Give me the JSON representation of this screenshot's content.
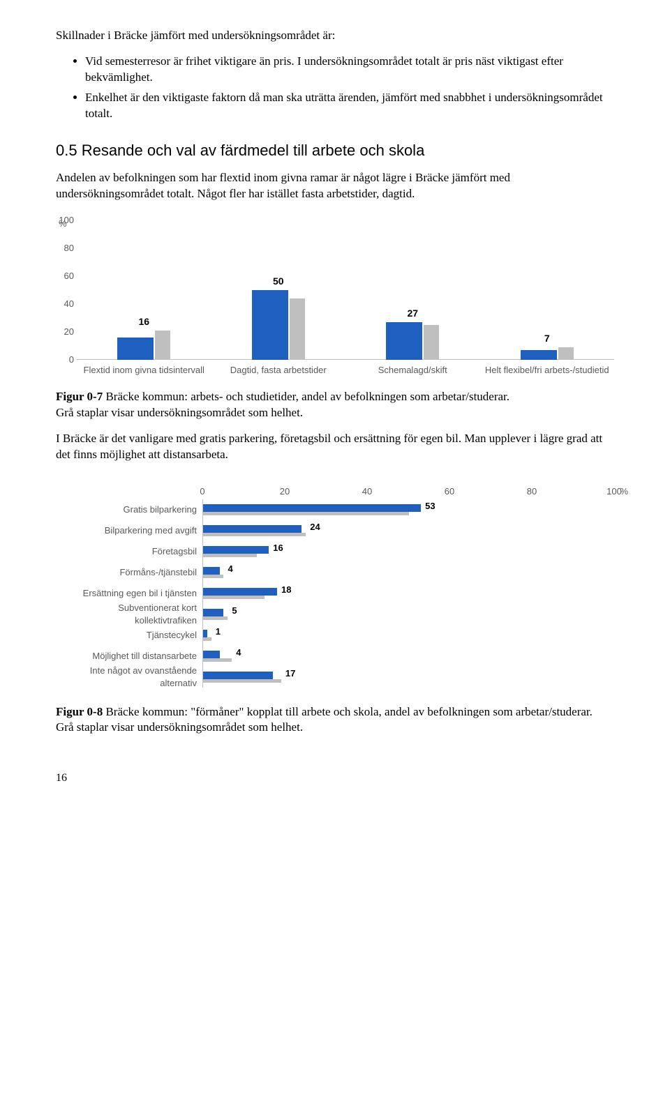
{
  "intro": "Skillnader i Bräcke jämfört med undersökningsområdet är:",
  "bullets": [
    "Vid semesterresor är frihet viktigare än pris. I undersökningsområdet totalt är pris näst viktigast efter bekvämlighet.",
    "Enkelhet är den viktigaste faktorn då man ska uträtta ärenden, jämfört med snabbhet i undersökningsområdet totalt."
  ],
  "heading": "0.5  Resande och val av färdmedel till arbete och skola",
  "para1": "Andelen av befolkningen som har flextid inom givna ramar är något lägre i Bräcke jämfört med undersökningsområdet totalt. Något fler har istället fasta arbetstider, dagtid.",
  "chart1": {
    "type": "bar",
    "y_pct_symbol": "%",
    "yticks": [
      0,
      20,
      40,
      60,
      80,
      100
    ],
    "ymax": 100,
    "bar_blue": "#1f5fbf",
    "bar_grey": "#bfbfbf",
    "label_color": "#595959",
    "value_color": "#000000",
    "label_fontsize": 13,
    "value_fontsize": 14,
    "background_color": "#ffffff",
    "categories": [
      {
        "label": "Flextid inom givna tidsintervall",
        "blue": 16,
        "grey": 21
      },
      {
        "label": "Dagtid, fasta arbetstider",
        "blue": 50,
        "grey": 44
      },
      {
        "label": "Schemalagd/skift",
        "blue": 27,
        "grey": 25
      },
      {
        "label": "Helt flexibel/fri arbets-/studietid",
        "blue": 7,
        "grey": 9
      }
    ]
  },
  "caption1_bold": "Figur 0-7",
  "caption1_rest": " Bräcke kommun: arbets- och studietider, andel av befolkningen som arbetar/studerar.",
  "caption1_line2": "Grå staplar visar undersökningsområdet som helhet.",
  "para2": "I Bräcke är det vanligare med gratis parkering, företagsbil och ersättning för egen bil. Man upplever i lägre grad att det finns möjlighet att distansarbeta.",
  "chart2": {
    "type": "bar-horizontal",
    "x_pct_symbol": "%",
    "xticks": [
      0,
      20,
      40,
      60,
      80,
      100
    ],
    "xmax": 100,
    "bar_blue": "#1f5fbf",
    "bar_grey": "#bfbfbf",
    "label_color": "#595959",
    "value_color": "#000000",
    "label_fontsize": 13,
    "value_fontsize": 13,
    "background_color": "#ffffff",
    "rows": [
      {
        "label": "Gratis bilparkering",
        "blue": 53,
        "grey": 50
      },
      {
        "label": "Bilparkering med avgift",
        "blue": 24,
        "grey": 25
      },
      {
        "label": "Företagsbil",
        "blue": 16,
        "grey": 13
      },
      {
        "label": "Förmåns-/tjänstebil",
        "blue": 4,
        "grey": 5
      },
      {
        "label": "Ersättning egen bil i tjänsten",
        "blue": 18,
        "grey": 15
      },
      {
        "label": "Subventionerat kort kollektivtrafiken",
        "blue": 5,
        "grey": 6
      },
      {
        "label": "Tjänstecykel",
        "blue": 1,
        "grey": 2
      },
      {
        "label": "Möjlighet till distansarbete",
        "blue": 4,
        "grey": 7
      },
      {
        "label": "Inte något av ovanstående alternativ",
        "blue": 17,
        "grey": 19
      }
    ]
  },
  "caption2_bold": "Figur 0-8",
  "caption2_rest": " Bräcke kommun: \"förmåner\" kopplat till arbete och skola, andel av befolkningen som arbetar/studerar.",
  "caption2_line2": "Grå staplar visar undersökningsområdet som helhet.",
  "page_number": "16"
}
